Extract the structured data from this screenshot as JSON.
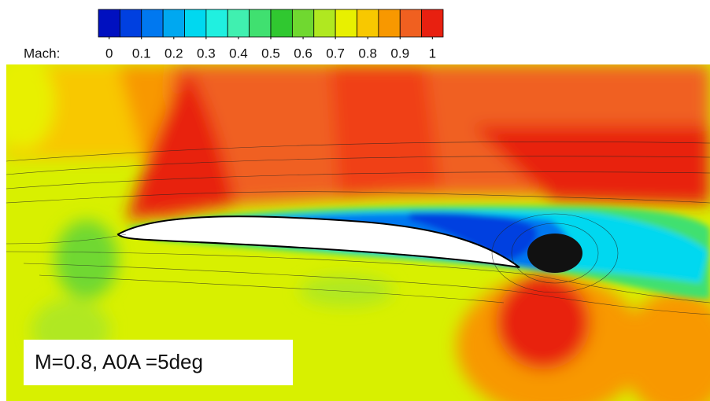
{
  "chart_data": {
    "type": "contour",
    "colorbar_label": "Mach:",
    "clim": [
      0,
      1
    ],
    "colorbar_ticks": [
      0,
      0.1,
      0.2,
      0.3,
      0.4,
      0.5,
      0.6,
      0.7,
      0.8,
      0.9,
      1
    ],
    "colors": [
      "#0010c0",
      "#0040e0",
      "#0078f0",
      "#00a8f0",
      "#00d8f0",
      "#20f0e0",
      "#40f0b0",
      "#40e070",
      "#30c830",
      "#70d830",
      "#b0e820",
      "#e8f000",
      "#f8c800",
      "#f89800",
      "#f06020",
      "#e82010"
    ],
    "annotation": "M=0.8, A0A =5deg"
  }
}
